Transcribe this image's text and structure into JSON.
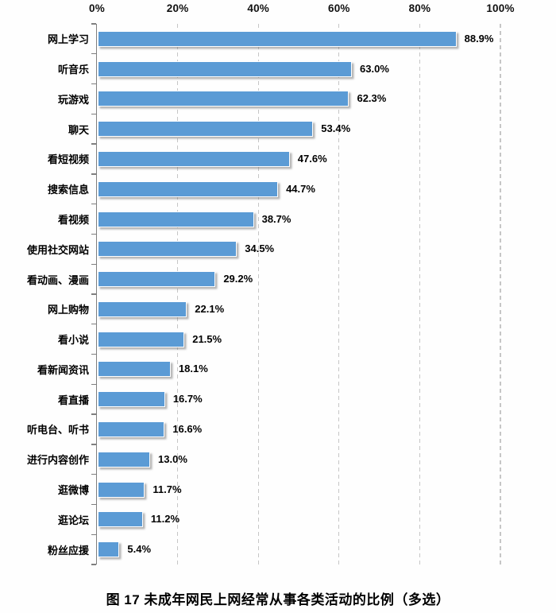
{
  "caption": "图 17 未成年网民上网经常从事各类活动的比例（多选）",
  "chart_data": {
    "type": "bar",
    "orientation": "horizontal",
    "title": "图 17 未成年网民上网经常从事各类活动的比例（多选）",
    "categories": [
      "网上学习",
      "听音乐",
      "玩游戏",
      "聊天",
      "看短视频",
      "搜索信息",
      "看视频",
      "使用社交网站",
      "看动画、漫画",
      "网上购物",
      "看小说",
      "看新闻资讯",
      "看直播",
      "听电台、听书",
      "进行内容创作",
      "逛微博",
      "逛论坛",
      "粉丝应援"
    ],
    "values": [
      88.9,
      63.0,
      62.3,
      53.4,
      47.6,
      44.7,
      38.7,
      34.5,
      29.2,
      22.1,
      21.5,
      18.1,
      16.7,
      16.6,
      13.0,
      11.7,
      11.2,
      5.4
    ],
    "value_labels": [
      "88.9%",
      "63.0%",
      "62.3%",
      "53.4%",
      "47.6%",
      "44.7%",
      "38.7%",
      "34.5%",
      "29.2%",
      "22.1%",
      "21.5%",
      "18.1%",
      "16.7%",
      "16.6%",
      "13.0%",
      "11.7%",
      "11.2%",
      "5.4%"
    ],
    "x_ticks": [
      "0%",
      "20%",
      "40%",
      "60%",
      "80%",
      "100%"
    ],
    "x_tick_values": [
      0,
      20,
      40,
      60,
      80,
      100
    ],
    "xlim": [
      0,
      100
    ],
    "grid": "dashed-vertical",
    "legend": "none",
    "bar_color": "#5B9BD5",
    "axis_color": "#7f7f7f",
    "grid_color": "#c6c6c6",
    "label_color": "#000000"
  }
}
